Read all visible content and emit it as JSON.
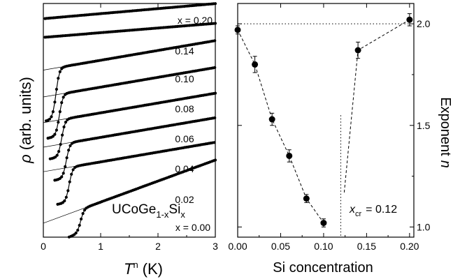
{
  "chart_data": [
    {
      "type": "line",
      "xlabel": "T",
      "xlabel_sup": "n",
      "xlabel_unit": "(K)",
      "ylabel": "ρ",
      "ylabel_rest": "(arb. units)",
      "xlim": [
        0,
        3
      ],
      "xticks": [
        "0",
        "1",
        "2",
        "3"
      ],
      "compound_base": "UCoGe",
      "compound_sub1": "1-x",
      "compound_mid": "Si",
      "compound_sub2": "x",
      "series": [
        {
          "name": "x = 0.20",
          "Tc": null,
          "offset": 0.935,
          "slope": 0.0215,
          "drop": 0
        },
        {
          "name": "0.14",
          "Tc": null,
          "offset": 0.855,
          "slope": 0.02,
          "drop": 0
        },
        {
          "name": "0.10",
          "Tc": 0.22,
          "offset": 0.715,
          "slope": 0.042,
          "drop": 0.22
        },
        {
          "name": "0.08",
          "Tc": 0.28,
          "offset": 0.6,
          "slope": 0.042,
          "drop": 0.18
        },
        {
          "name": "0.06",
          "Tc": 0.32,
          "offset": 0.49,
          "slope": 0.042,
          "drop": 0.16
        },
        {
          "name": "0.04",
          "Tc": 0.4,
          "offset": 0.385,
          "slope": 0.042,
          "drop": 0.15
        },
        {
          "name": "0.02",
          "Tc": 0.45,
          "offset": 0.28,
          "slope": 0.042,
          "drop": 0.15
        },
        {
          "name": "x = 0.00",
          "Tc": 0.65,
          "offset": 0.06,
          "slope": 0.09,
          "drop": 0.1
        }
      ]
    },
    {
      "type": "scatter",
      "xlabel": "Si concentration",
      "ylabel": "Exponent n",
      "ylabel_italic": "n",
      "ylabel_main": "Exponent",
      "xlim": [
        0,
        0.205
      ],
      "ylim": [
        0.95,
        2.1
      ],
      "xticks": [
        "0.00",
        "0.05",
        "0.10",
        "0.15",
        "0.20"
      ],
      "yticks": [
        "1.0",
        "1.5",
        "2.0"
      ],
      "points": [
        {
          "x": 0.0,
          "y": 1.97,
          "err": 0.02
        },
        {
          "x": 0.02,
          "y": 1.8,
          "err": 0.04
        },
        {
          "x": 0.04,
          "y": 1.53,
          "err": 0.03
        },
        {
          "x": 0.06,
          "y": 1.35,
          "err": 0.03
        },
        {
          "x": 0.08,
          "y": 1.14,
          "err": 0.02
        },
        {
          "x": 0.1,
          "y": 1.02,
          "err": 0.02
        },
        {
          "x": 0.14,
          "y": 1.87,
          "err": 0.04
        },
        {
          "x": 0.2,
          "y": 2.02,
          "err": 0.03
        }
      ],
      "annotation_var": "x",
      "annotation_sub": "cr",
      "annotation_val": "= 0.12",
      "xcr": 0.12,
      "reference_line_y": 2.0
    }
  ]
}
